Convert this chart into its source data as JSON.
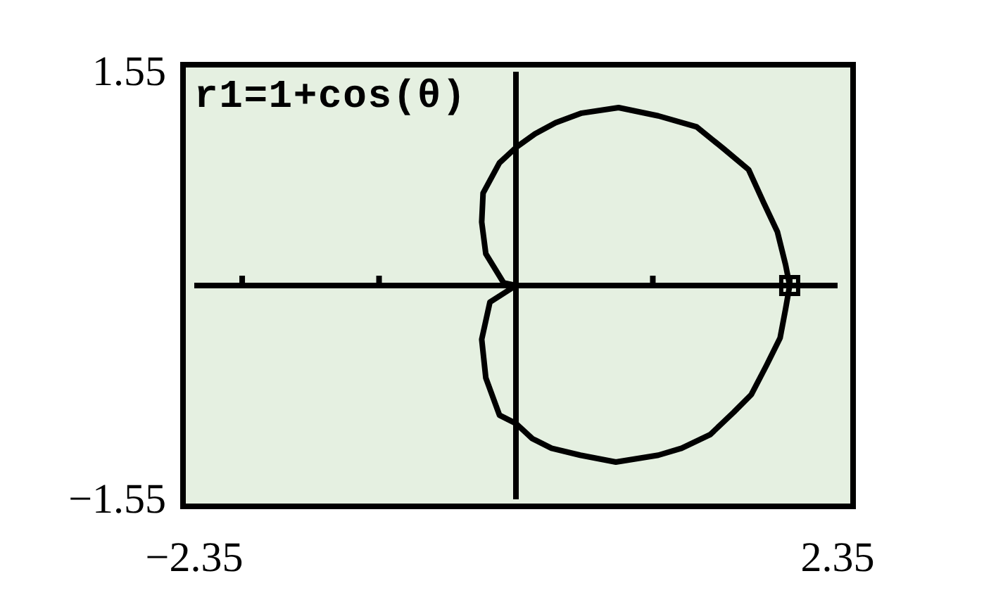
{
  "chart_data": {
    "type": "line",
    "annotations": [
      "r1=1+cos(θ)"
    ],
    "xlim": [
      -2.35,
      2.35
    ],
    "ylim": [
      -1.55,
      1.55
    ],
    "xticks": [
      {
        "value": -2.35,
        "label": "−2.35"
      },
      {
        "value": -2,
        "label": null
      },
      {
        "value": -1,
        "label": null
      },
      {
        "value": 1,
        "label": null
      },
      {
        "value": 2,
        "label": null
      },
      {
        "value": 2.35,
        "label": "2.35"
      }
    ],
    "yticks": [
      {
        "value": -1.55,
        "label": "−1.55"
      },
      {
        "value": 1.55,
        "label": "1.55"
      }
    ],
    "series": [
      {
        "color": "#000000",
        "x": [
          2,
          1.97,
          1.91,
          1.81,
          1.7,
          1.52,
          1.32,
          1.04,
          0.75,
          0.48,
          0.29,
          0.14,
          0,
          -0.12,
          -0.24,
          -0.25,
          -0.22,
          -0.09,
          0
        ],
        "values": [
          0,
          0.15,
          0.39,
          0.6,
          0.84,
          0.99,
          1.15,
          1.23,
          1.29,
          1.25,
          1.18,
          1.1,
          1,
          0.89,
          0.67,
          0.46,
          0.23,
          0.02,
          0
        ]
      },
      {
        "color": "#000000",
        "x": [
          0,
          -0.19,
          -0.25,
          -0.22,
          -0.12,
          0,
          0.12,
          0.26,
          0.47,
          0.73,
          1.04,
          1.21,
          1.42,
          1.59,
          1.72,
          1.83,
          1.93,
          1.97,
          2
        ],
        "values": [
          0,
          -0.12,
          -0.39,
          -0.67,
          -0.94,
          -1,
          -1.11,
          -1.18,
          -1.23,
          -1.28,
          -1.23,
          -1.18,
          -1.08,
          -0.92,
          -0.79,
          -0.58,
          -0.38,
          -0.17,
          0
        ]
      },
      {
        "type": "scatter",
        "color": "#000000",
        "marker": "square",
        "x": [
          2
        ],
        "values": [
          0
        ]
      }
    ]
  }
}
